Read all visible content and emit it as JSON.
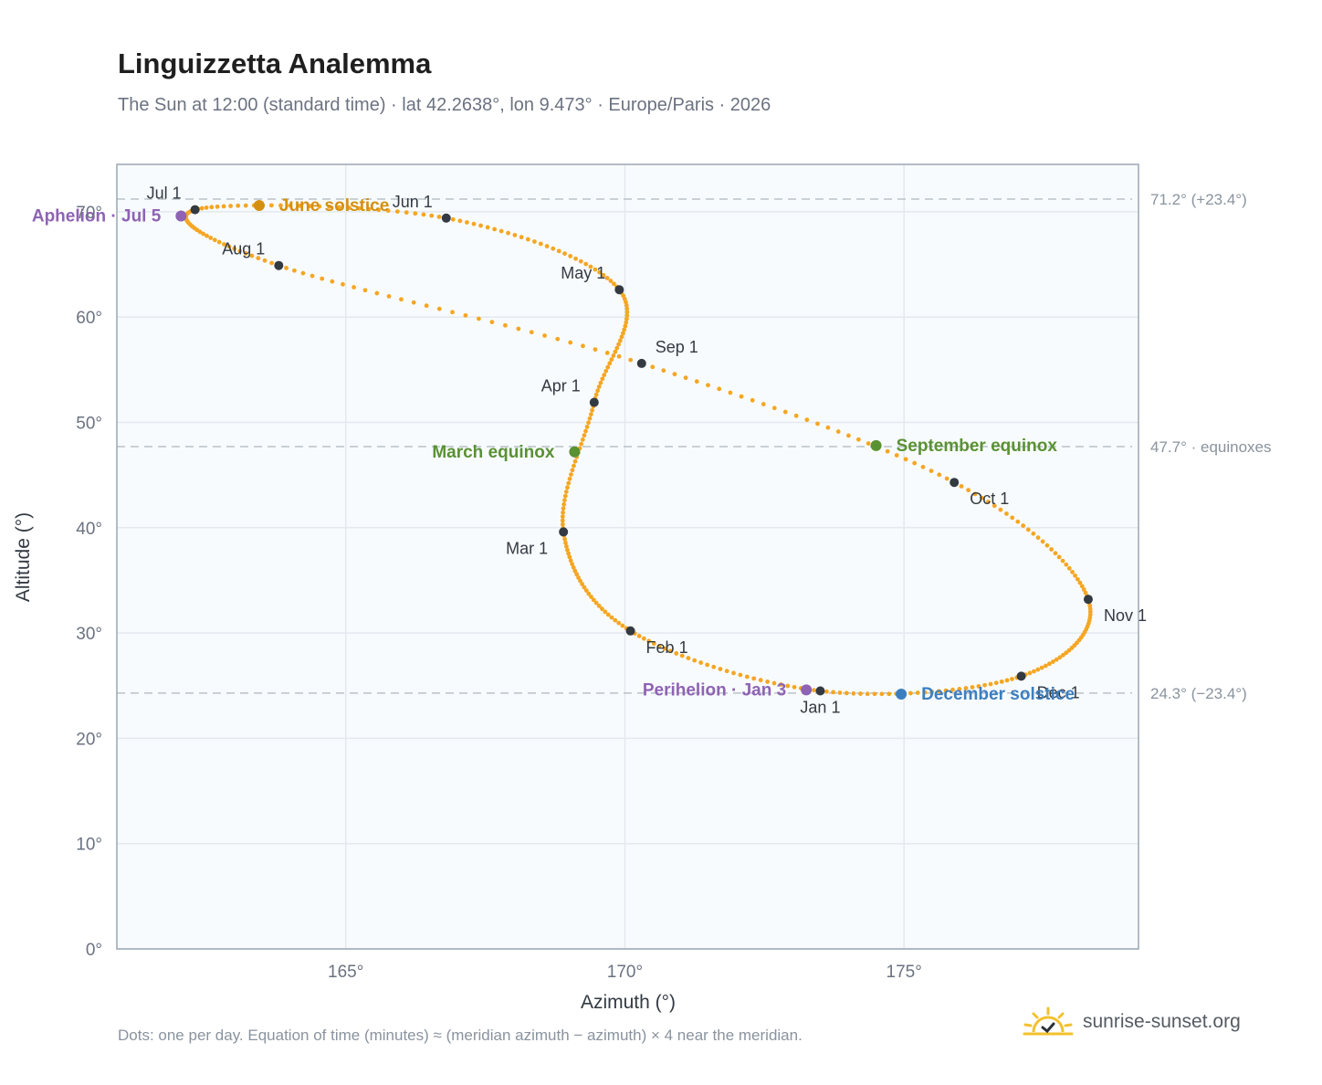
{
  "header": {
    "title": "Linguizzetta Analemma",
    "subtitle": "The Sun at 12:00 (standard time) · lat 42.2638°, lon 9.473° · Europe/Paris · 2026"
  },
  "footer": {
    "note": "Dots: one per day. Equation of time (minutes) ≈ (meridian azimuth − azimuth) × 4 near the meridian.",
    "brand": "sunrise-sunset.org",
    "brand_icon": "sun-icon"
  },
  "colors": {
    "curve": "#f5a623",
    "month_marker": "#333a42",
    "solstice_june": "#d4900f",
    "solstice_december": "#3d7ebf",
    "equinox": "#5a9133",
    "apsis": "#8e63b3",
    "plot_background": "#f8fbfd",
    "grid": "#e3e9ef",
    "reference_line": "#b9c1c9",
    "axis_frame": "#9ba6b3"
  },
  "chart_data": {
    "type": "scatter",
    "xlabel": "Azimuth (°)",
    "ylabel": "Altitude (°)",
    "xlim": [
      160.9,
      179.2
    ],
    "ylim": [
      0,
      74.5
    ],
    "xticks": [
      165,
      170,
      175
    ],
    "xtick_labels": [
      "165°",
      "170°",
      "175°"
    ],
    "yticks": [
      0,
      10,
      20,
      30,
      40,
      50,
      60,
      70
    ],
    "ytick_labels": [
      "0°",
      "10°",
      "20°",
      "30°",
      "40°",
      "50°",
      "60°",
      "70°"
    ],
    "grid": true,
    "reference_lines": [
      {
        "y": 71.2,
        "label": "71.2° (+23.4°)"
      },
      {
        "y": 47.7,
        "label": "47.7° · equinoxes"
      },
      {
        "y": 24.3,
        "label": "24.3° (−23.4°)"
      }
    ],
    "series": [
      {
        "points": [
          [
            173.5,
            24.5
          ],
          [
            170.1,
            30.2
          ],
          [
            168.9,
            39.6
          ],
          [
            169.45,
            51.9
          ],
          [
            169.9,
            62.6
          ],
          [
            166.8,
            69.4
          ],
          [
            162.3,
            70.2
          ],
          [
            163.8,
            64.9
          ],
          [
            170.3,
            55.6
          ],
          [
            175.9,
            44.3
          ],
          [
            178.3,
            33.2
          ],
          [
            177.1,
            25.9
          ],
          [
            173.5,
            24.5
          ]
        ]
      }
    ],
    "month_markers": [
      {
        "label": "Jan 1",
        "x": 173.5,
        "y": 24.5,
        "anchor": "below"
      },
      {
        "label": "Feb 1",
        "x": 170.1,
        "y": 30.2,
        "anchor": "below-right"
      },
      {
        "label": "Mar 1",
        "x": 168.9,
        "y": 39.6,
        "anchor": "below-left"
      },
      {
        "label": "Apr 1",
        "x": 169.45,
        "y": 51.9,
        "anchor": "above-left"
      },
      {
        "label": "May 1",
        "x": 169.9,
        "y": 62.6,
        "anchor": "above-left"
      },
      {
        "label": "Jun 1",
        "x": 166.8,
        "y": 69.4,
        "anchor": "above-left"
      },
      {
        "label": "Jul 1",
        "x": 162.3,
        "y": 70.2,
        "anchor": "above-left"
      },
      {
        "label": "Aug 1",
        "x": 163.8,
        "y": 64.9,
        "anchor": "above-left"
      },
      {
        "label": "Sep 1",
        "x": 170.3,
        "y": 55.6,
        "anchor": "above-right"
      },
      {
        "label": "Oct 1",
        "x": 175.9,
        "y": 44.3,
        "anchor": "below-right"
      },
      {
        "label": "Nov 1",
        "x": 178.3,
        "y": 33.2,
        "anchor": "below-right"
      },
      {
        "label": "Dec 1",
        "x": 177.1,
        "y": 25.9,
        "anchor": "below-right"
      }
    ],
    "events": [
      {
        "label": "June solstice",
        "x": 163.45,
        "y": 70.6,
        "color_key": "solstice_june",
        "anchor": "right"
      },
      {
        "label": "December solstice",
        "x": 174.95,
        "y": 24.2,
        "color_key": "solstice_december",
        "anchor": "right"
      },
      {
        "label": "March equinox",
        "x": 169.1,
        "y": 47.2,
        "color_key": "equinox",
        "anchor": "left"
      },
      {
        "label": "September equinox",
        "x": 174.5,
        "y": 47.8,
        "color_key": "equinox",
        "anchor": "right"
      },
      {
        "label": "Aphelion · Jul 5",
        "x": 162.05,
        "y": 69.6,
        "color_key": "apsis",
        "anchor": "left"
      },
      {
        "label": "Perihelion · Jan 3",
        "x": 173.25,
        "y": 24.6,
        "color_key": "apsis",
        "anchor": "left"
      }
    ]
  }
}
